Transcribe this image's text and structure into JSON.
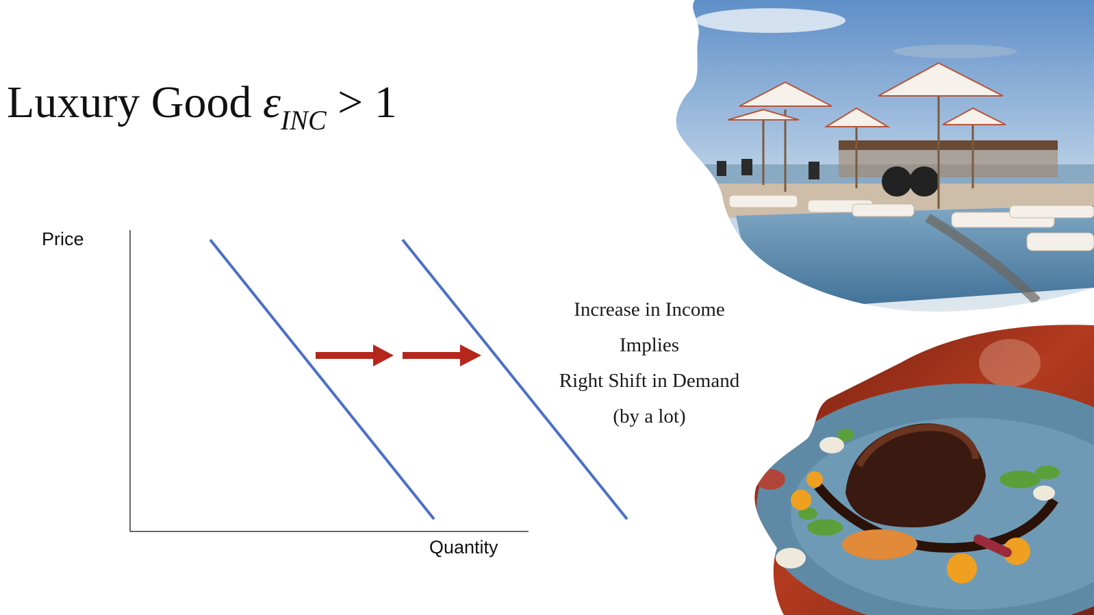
{
  "title": {
    "text": "Luxury Good",
    "symbol": "ε",
    "subscript": "INC",
    "relation": "> 1"
  },
  "axes": {
    "y_label": "Price",
    "x_label": "Quantity"
  },
  "caption": {
    "lines": [
      "Increase in Income",
      "Implies",
      "Right Shift in Demand",
      "(by a lot)"
    ]
  },
  "colors": {
    "demand_line": "#4a6fc7",
    "arrow": "#b5271d",
    "axis": "#333333"
  },
  "images": [
    {
      "name": "resort-pool-photo",
      "depicts": "luxury resort pool with umbrellas and loungers"
    },
    {
      "name": "fine-dining-plate-photo",
      "depicts": "gourmet steak dish on blue plate"
    }
  ]
}
